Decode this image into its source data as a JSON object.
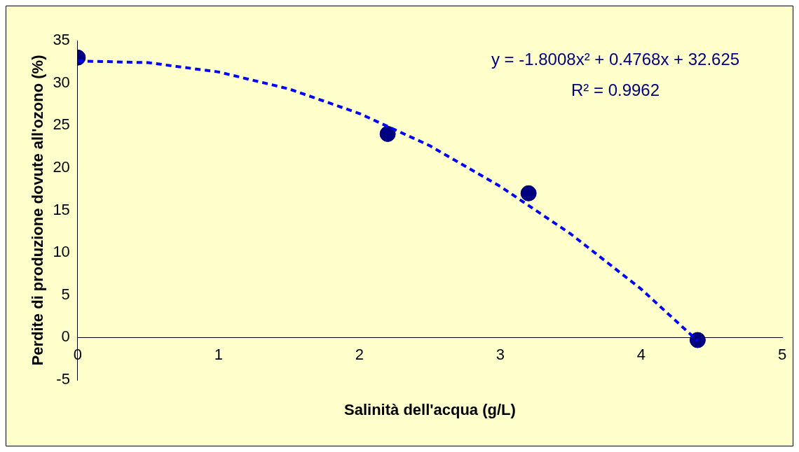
{
  "chart_data": {
    "type": "scatter",
    "xlabel": "Salinità dell'acqua (g/L)",
    "ylabel": "Perdite di produzione dovute all'ozono (%)",
    "annotations": [
      "y = -1.8008x² + 0.4768x + 32.625",
      "R² = 0.9962"
    ],
    "xlim": [
      0,
      5
    ],
    "xticks": [
      0,
      1,
      2,
      3,
      4,
      5
    ],
    "ylim": [
      -5,
      35
    ],
    "yticks": [
      -5,
      0,
      5,
      10,
      15,
      20,
      25,
      30,
      35
    ],
    "grid": false,
    "legend": false,
    "series": [
      {
        "color": "#000080",
        "marker": "circle",
        "x": [
          0,
          2.2,
          3.2,
          4.4
        ],
        "values": [
          33,
          24,
          17,
          -0.3
        ]
      },
      {
        "type": "line",
        "color": "#0000ff",
        "marker": "none",
        "line_style": "dashed",
        "x": [
          0,
          0.5,
          1,
          1.5,
          2,
          2.5,
          3,
          3.5,
          4,
          4.4
        ],
        "values": [
          32.6,
          32.4,
          31.3,
          29.3,
          26.4,
          22.6,
          17.8,
          12.2,
          5.7,
          -0.4
        ]
      }
    ]
  }
}
